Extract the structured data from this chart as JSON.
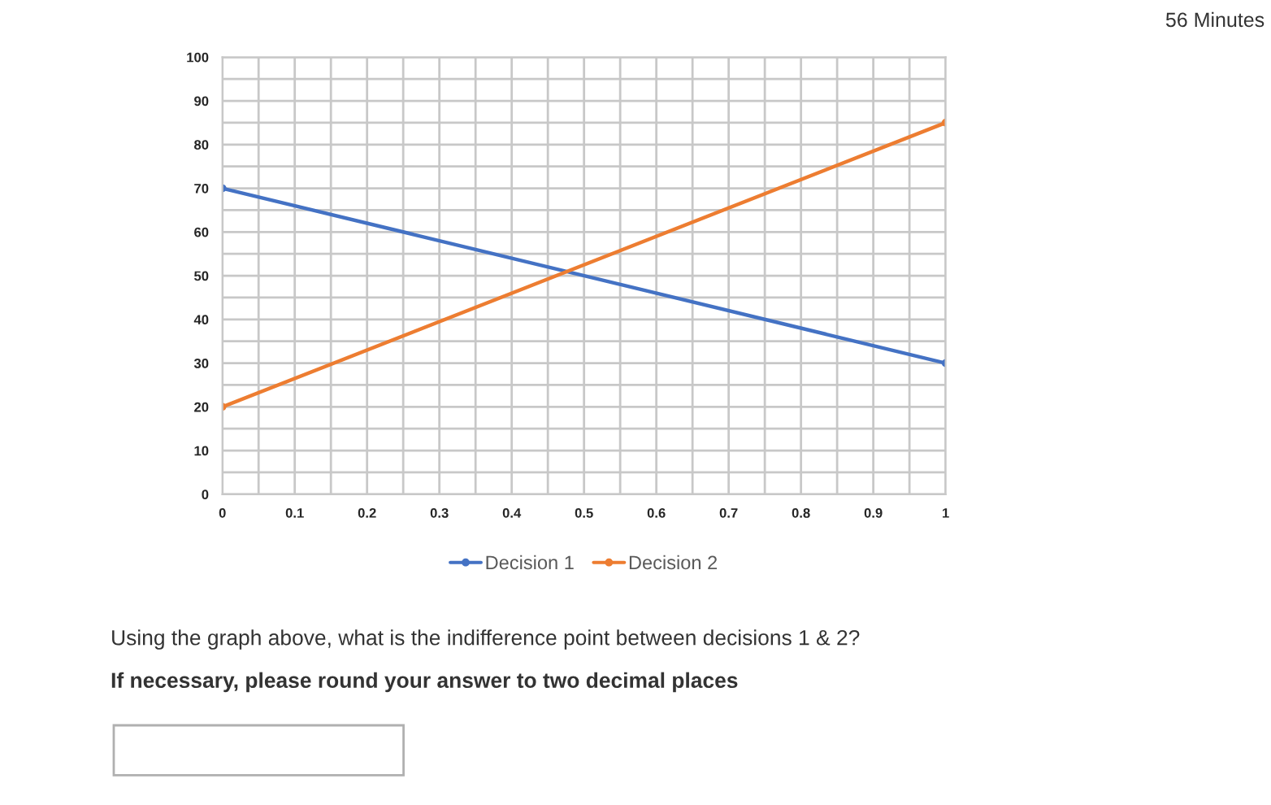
{
  "chart_data": {
    "type": "line",
    "x": [
      0,
      1
    ],
    "series": [
      {
        "name": "Decision 1",
        "color": "#4472c4",
        "values": [
          70,
          30
        ]
      },
      {
        "name": "Decision 2",
        "color": "#ed7d31",
        "values": [
          20,
          85
        ]
      }
    ],
    "xlim": [
      0,
      1
    ],
    "ylim": [
      0,
      100
    ],
    "xticks": [
      0,
      {
        "value": 0.05,
        "label": null
      },
      0.1,
      {
        "value": 0.15,
        "label": null
      },
      0.2,
      {
        "value": 0.25,
        "label": null
      },
      0.3,
      {
        "value": 0.35,
        "label": null
      },
      0.4,
      {
        "value": 0.45,
        "label": null
      },
      0.5,
      {
        "value": 0.55,
        "label": null
      },
      0.6,
      {
        "value": 0.65,
        "label": null
      },
      0.7,
      {
        "value": 0.75,
        "label": null
      },
      0.8,
      {
        "value": 0.85,
        "label": null
      },
      0.9,
      {
        "value": 0.95,
        "label": null
      },
      1
    ],
    "yticks": [
      0,
      {
        "value": 5,
        "label": null
      },
      10,
      {
        "value": 15,
        "label": null
      },
      20,
      {
        "value": 25,
        "label": null
      },
      30,
      {
        "value": 35,
        "label": null
      },
      40,
      {
        "value": 45,
        "label": null
      },
      50,
      {
        "value": 55,
        "label": null
      },
      60,
      {
        "value": 65,
        "label": null
      },
      70,
      {
        "value": 75,
        "label": null
      },
      80,
      {
        "value": 85,
        "label": null
      },
      90,
      {
        "value": 95,
        "label": null
      },
      100
    ],
    "grid": true,
    "legend": "bottom",
    "marker": "circle",
    "line_style": "solid",
    "annotations": [
      "56 Minutes",
      "Using the graph above, what is the indifference point between decisions 1 & 2?",
      "If necessary, please round your answer to two decimal places"
    ]
  }
}
